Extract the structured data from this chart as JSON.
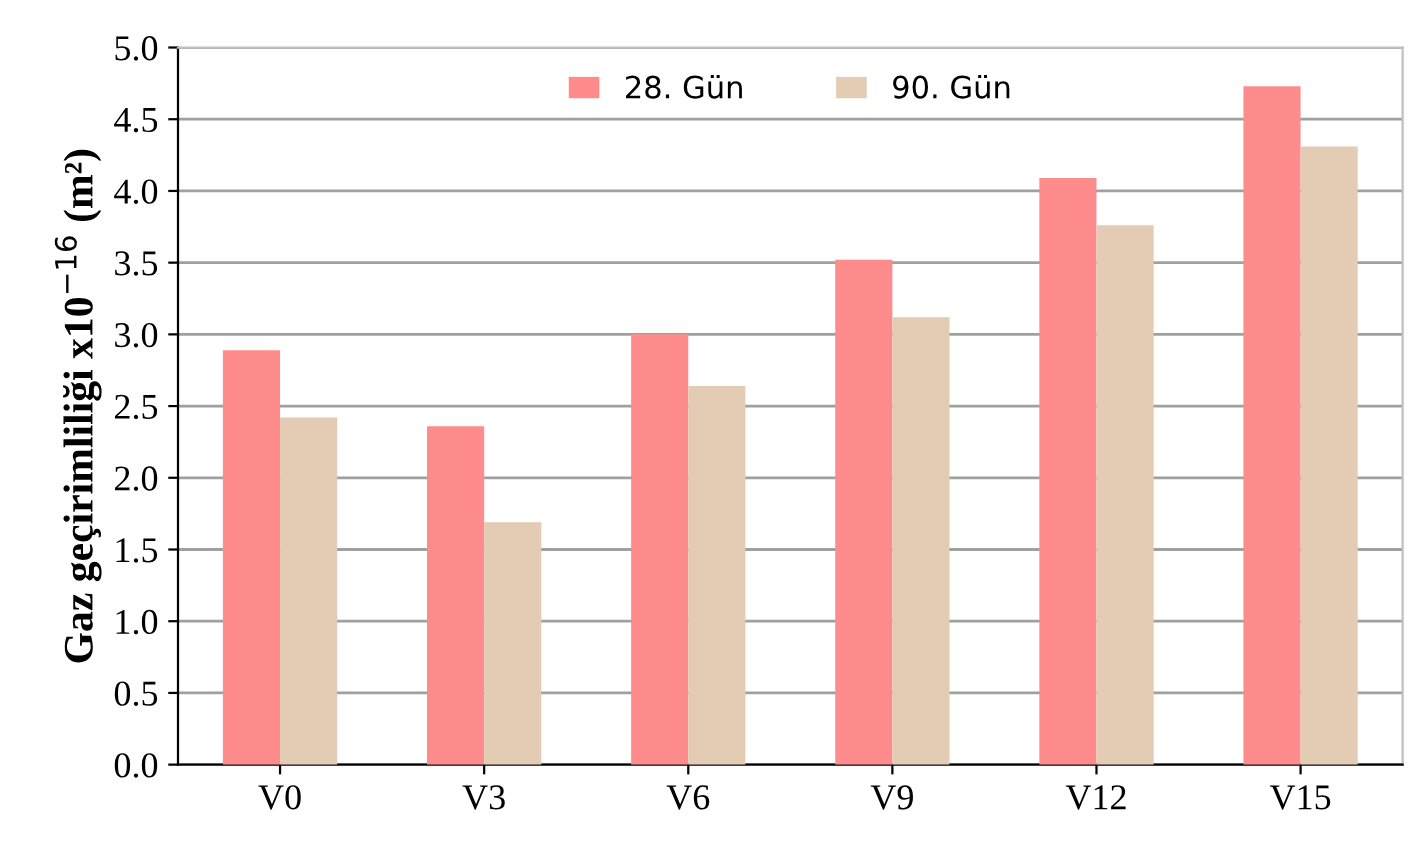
{
  "chart_data": {
    "type": "bar",
    "ylabel": "Gaz geçirimliliği x10$^{−16}$ (m²)",
    "categories": [
      "V0",
      "V3",
      "V6",
      "V9",
      "V12",
      "V15"
    ],
    "series": [
      {
        "name": "28. Gün",
        "color": "#ff8c8c",
        "values": [
          2.89,
          2.36,
          3.0,
          3.52,
          4.09,
          4.73
        ]
      },
      {
        "name": "90. Gün",
        "color": "#e3cbb4",
        "values": [
          2.42,
          1.69,
          2.64,
          3.12,
          3.76,
          4.31
        ]
      }
    ],
    "ylim": [
      0,
      5
    ],
    "yticks": [
      {
        "value": 0,
        "label": "0.0"
      },
      {
        "value": 0.5,
        "label": "0.5"
      },
      {
        "value": 1,
        "label": "1.0"
      },
      {
        "value": 1.5,
        "label": "1.5"
      },
      {
        "value": 2,
        "label": "2.0"
      },
      {
        "value": 2.5,
        "label": "2.5"
      },
      {
        "value": 3,
        "label": "3.0"
      },
      {
        "value": 3.5,
        "label": "3.5"
      },
      {
        "value": 4,
        "label": "4.0"
      },
      {
        "value": 4.5,
        "label": "4.5"
      },
      {
        "value": 5,
        "label": "5.0"
      }
    ],
    "grid": "y",
    "legend": "top"
  }
}
